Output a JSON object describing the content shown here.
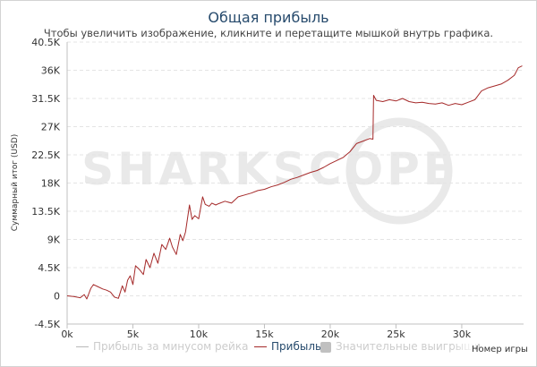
{
  "chart_data": {
    "type": "line",
    "title": "Общая прибыль",
    "subtitle": "Чтобы увеличить изображение, кликните и перетащите мышкой внутрь графика.",
    "xlabel": "Номер игры",
    "ylabel": "Суммарный итог (USD)",
    "xlim": [
      0,
      34700
    ],
    "ylim": [
      -4500,
      40500
    ],
    "x_ticks": [
      {
        "value": 0,
        "label": "0k"
      },
      {
        "value": 5000,
        "label": "5k"
      },
      {
        "value": 10000,
        "label": "10k"
      },
      {
        "value": 15000,
        "label": "15k"
      },
      {
        "value": 20000,
        "label": "20k"
      },
      {
        "value": 25000,
        "label": "25k"
      },
      {
        "value": 30000,
        "label": "30k"
      }
    ],
    "y_ticks": [
      {
        "value": -4500,
        "label": "-4.5K"
      },
      {
        "value": 0,
        "label": "0"
      },
      {
        "value": 4500,
        "label": "4.5K"
      },
      {
        "value": 9000,
        "label": "9K"
      },
      {
        "value": 13500,
        "label": "13.5K"
      },
      {
        "value": 18000,
        "label": "18K"
      },
      {
        "value": 22500,
        "label": "22.5K"
      },
      {
        "value": 27000,
        "label": "27K"
      },
      {
        "value": 31500,
        "label": "31.5K"
      },
      {
        "value": 36000,
        "label": "36K"
      },
      {
        "value": 40500,
        "label": "40.5K"
      }
    ],
    "grid": true,
    "legend_position": "bottom",
    "series": [
      {
        "name": "Прибыль",
        "color": "#a52a2a",
        "x": [
          0,
          500,
          1000,
          1300,
          1500,
          1800,
          2000,
          2300,
          2700,
          3000,
          3300,
          3600,
          3900,
          4200,
          4400,
          4600,
          4800,
          5000,
          5200,
          5500,
          5800,
          6000,
          6300,
          6600,
          6900,
          7200,
          7500,
          7800,
          8000,
          8300,
          8600,
          8800,
          9000,
          9300,
          9500,
          9700,
          10000,
          10300,
          10500,
          10800,
          11000,
          11300,
          11500,
          12000,
          12500,
          13000,
          13500,
          14000,
          14500,
          15000,
          15500,
          16000,
          16500,
          17000,
          17500,
          18000,
          18500,
          19000,
          19500,
          20000,
          20500,
          21000,
          21500,
          22000,
          22500,
          23000,
          23250,
          23300,
          23500,
          24000,
          24500,
          25000,
          25500,
          26000,
          26500,
          27000,
          27500,
          28000,
          28500,
          29000,
          29500,
          30000,
          30500,
          31000,
          31500,
          32000,
          32500,
          33000,
          33500,
          34000,
          34300,
          34600
        ],
        "y": [
          0,
          -100,
          -300,
          200,
          -500,
          1200,
          1800,
          1500,
          1100,
          900,
          600,
          -200,
          -400,
          1600,
          600,
          2500,
          3200,
          1800,
          4800,
          4200,
          3400,
          5800,
          4500,
          6800,
          5200,
          8200,
          7400,
          9200,
          7800,
          6600,
          9800,
          8800,
          10200,
          14500,
          12200,
          12800,
          12300,
          15800,
          14600,
          14300,
          14800,
          14500,
          14700,
          15100,
          14800,
          15800,
          16100,
          16400,
          16800,
          17000,
          17400,
          17700,
          18100,
          18600,
          18900,
          19300,
          19700,
          20000,
          20500,
          21100,
          21600,
          22100,
          23000,
          24300,
          24700,
          25100,
          25000,
          32000,
          31200,
          31000,
          31300,
          31100,
          31500,
          31000,
          30800,
          30900,
          30700,
          30600,
          30800,
          30400,
          30700,
          30500,
          30900,
          31300,
          32700,
          33200,
          33500,
          33800,
          34400,
          35200,
          36400,
          36700
        ]
      }
    ]
  },
  "legend": {
    "items": [
      {
        "label": "Прибыль за минусом рейка",
        "color": "#b8b8b8",
        "text_color": "#cccccc",
        "kind": "line"
      },
      {
        "label": "Прибыль",
        "color": "#a52a2a",
        "text_color": "#274b6d",
        "kind": "line"
      },
      {
        "label": "Значительные выигрыши",
        "color": "#c0c0c0",
        "text_color": "#cccccc",
        "kind": "box"
      }
    ]
  },
  "watermark": {
    "text": "SHARKSCOPE",
    "color": "#e9e9e9"
  }
}
